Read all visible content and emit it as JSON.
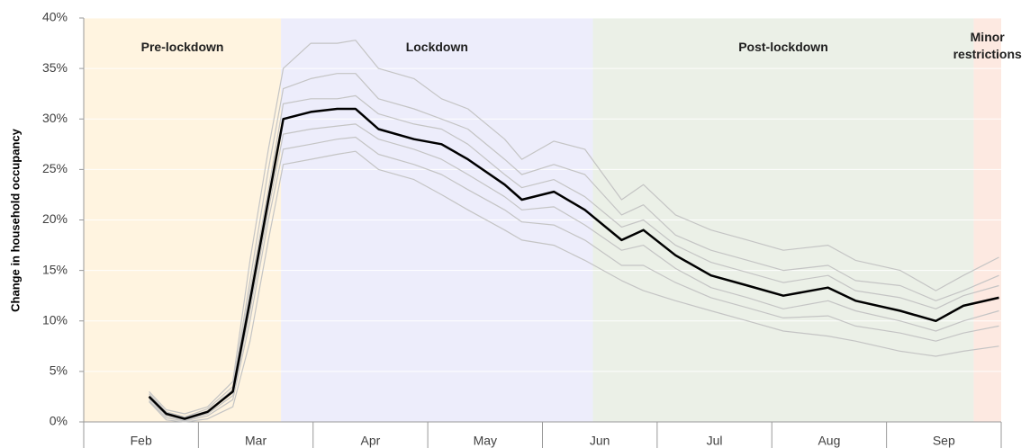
{
  "chart_data": {
    "type": "line",
    "y_label": "Change in household occupancy",
    "categories": [
      "Feb",
      "Mar",
      "Apr",
      "May",
      "Jun",
      "Jul",
      "Aug",
      "Sep"
    ],
    "xlim": [
      0,
      8
    ],
    "ylim": [
      0,
      40
    ],
    "yticks": [
      {
        "value": 0,
        "label": "0%"
      },
      {
        "value": 5,
        "label": "5%"
      },
      {
        "value": 10,
        "label": "10%"
      },
      {
        "value": 15,
        "label": "15%"
      },
      {
        "value": 20,
        "label": "20%"
      },
      {
        "value": 25,
        "label": "25%"
      },
      {
        "value": 30,
        "label": "30%"
      },
      {
        "value": 35,
        "label": "35%"
      },
      {
        "value": 40,
        "label": "40%"
      }
    ],
    "grid": true,
    "phases": [
      {
        "label": "Pre-lockdown",
        "start": 0,
        "end": 1.72,
        "color": "#fff4e0"
      },
      {
        "label": "Lockdown",
        "start": 1.72,
        "end": 4.44,
        "color": "#ededfb"
      },
      {
        "label": "Post-lockdown",
        "start": 4.44,
        "end": 7.76,
        "color": "#ebf0e7"
      },
      {
        "label": "Minor restrictions",
        "start": 7.76,
        "end": 8,
        "color": "#fde9e1"
      }
    ],
    "x": [
      0.57,
      0.72,
      0.88,
      1.08,
      1.3,
      1.45,
      1.61,
      1.74,
      1.98,
      2.21,
      2.37,
      2.57,
      2.88,
      3.12,
      3.35,
      3.67,
      3.82,
      4.1,
      4.37,
      4.69,
      4.88,
      5.16,
      5.47,
      5.79,
      6.1,
      6.49,
      6.73,
      7.12,
      7.43,
      7.67,
      7.98
    ],
    "series": [
      {
        "color": "#c4c4c4",
        "values": [
          3,
          1.2,
          0.8,
          1.5,
          4,
          16,
          27,
          35,
          37.5,
          37.5,
          37.8,
          35,
          34,
          32,
          31,
          28,
          26,
          27.8,
          27,
          22,
          23.5,
          20.5,
          19,
          18,
          17,
          17.5,
          16,
          15,
          13,
          14.5,
          16.3
        ]
      },
      {
        "color": "#c4c4c4",
        "values": [
          2.8,
          1,
          0.5,
          1.3,
          3.5,
          14,
          25,
          33,
          34,
          34.5,
          34.5,
          32,
          31,
          30,
          29,
          26,
          24.5,
          25.5,
          24.5,
          20.5,
          21.5,
          18.5,
          17,
          16,
          15,
          15.5,
          14,
          13.5,
          12,
          13,
          14.5
        ]
      },
      {
        "color": "#c4c4c4",
        "values": [
          2.6,
          0.9,
          0.4,
          1.1,
          3.2,
          13,
          23,
          31.5,
          32,
          32,
          32.3,
          30.5,
          29.5,
          29,
          27.5,
          24.5,
          23.2,
          24,
          22.3,
          19.3,
          20,
          17.5,
          15.8,
          14.8,
          13.8,
          14.5,
          13,
          12.3,
          11.2,
          12.5,
          13.5
        ]
      },
      {
        "color": "#c4c4c4",
        "values": [
          2.3,
          0.6,
          0.2,
          0.8,
          2.6,
          11,
          21,
          28.5,
          29,
          29.3,
          29.5,
          28,
          27,
          26,
          24.5,
          22.3,
          21,
          21.3,
          19.5,
          17,
          17.5,
          15.2,
          13.3,
          12.3,
          11.2,
          12,
          11,
          10,
          9,
          10,
          11
        ]
      },
      {
        "color": "#c4c4c4",
        "values": [
          2.1,
          0.4,
          0.1,
          0.6,
          2.2,
          10,
          20,
          27,
          27.5,
          28,
          28.2,
          26.5,
          25.5,
          24.5,
          23,
          21,
          19.8,
          19.5,
          18,
          15.5,
          15.5,
          13.8,
          12.3,
          11.3,
          10.3,
          10.5,
          9.5,
          8.8,
          8,
          8.8,
          9.5
        ]
      },
      {
        "color": "#c4c4c4",
        "values": [
          2,
          0.2,
          0,
          0.3,
          1.5,
          8,
          18,
          25.5,
          26,
          26.5,
          26.8,
          25,
          24,
          22.5,
          21,
          19,
          18,
          17.5,
          16,
          14,
          13,
          12,
          11,
          10,
          9,
          8.5,
          8,
          7,
          6.5,
          7,
          7.5
        ]
      },
      {
        "color": "#000000",
        "width": 2.5,
        "values": [
          2.5,
          0.8,
          0.3,
          1,
          3,
          12,
          22,
          30,
          30.7,
          31,
          31,
          29,
          28,
          27.5,
          26,
          23.5,
          22,
          22.8,
          21,
          18,
          19,
          16.5,
          14.5,
          13.5,
          12.5,
          13.3,
          12,
          11,
          10,
          11.5,
          12.3
        ]
      }
    ]
  }
}
